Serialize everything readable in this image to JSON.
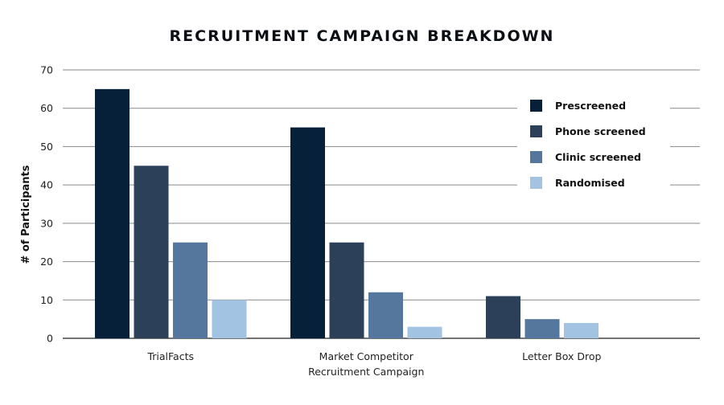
{
  "chart_data": {
    "type": "bar",
    "title": "RECRUITMENT CAMPAIGN BREAKDOWN",
    "xlabel": "",
    "ylabel": "# of Participants",
    "ylim": [
      0,
      70
    ],
    "yticks": [
      0,
      10,
      20,
      30,
      40,
      50,
      60,
      70
    ],
    "grid": true,
    "legend_position": "top-right",
    "categories": [
      [
        "TrialFacts"
      ],
      [
        "Market Competitor",
        "Recruitment Campaign"
      ],
      [
        "Letter Box Drop"
      ]
    ],
    "series": [
      {
        "name": "Prescreened",
        "color": "#06203a",
        "values": [
          65,
          55,
          null
        ]
      },
      {
        "name": "Phone screened",
        "color": "#2d405a",
        "values": [
          45,
          25,
          11
        ]
      },
      {
        "name": "Clinic screened",
        "color": "#55769d",
        "values": [
          25,
          12,
          5
        ]
      },
      {
        "name": "Randomised",
        "color": "#a2c3e2",
        "values": [
          10,
          3,
          4
        ]
      }
    ]
  }
}
